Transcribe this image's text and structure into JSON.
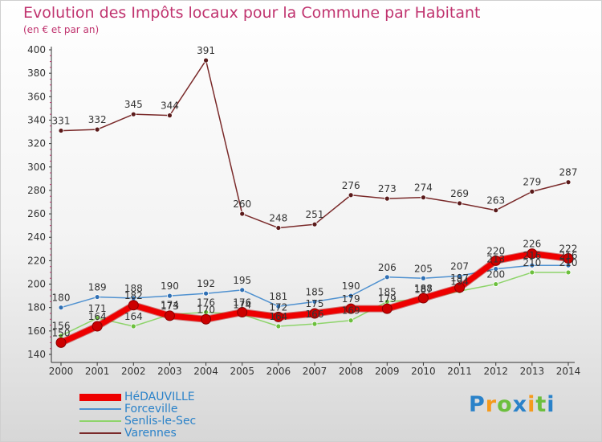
{
  "chart_data": {
    "type": "line",
    "title": "Evolution des Impôts locaux pour la Commune par Habitant",
    "subtitle": "(en € et par an)",
    "x": [
      "2000",
      "2001",
      "2002",
      "2003",
      "2004",
      "2005",
      "2006",
      "2007",
      "2008",
      "2009",
      "2010",
      "2011",
      "2012",
      "2013",
      "2014"
    ],
    "ylim": [
      140,
      400
    ],
    "yticks": [
      140,
      160,
      180,
      200,
      220,
      240,
      260,
      280,
      300,
      320,
      340,
      360,
      380,
      400
    ],
    "grid": false,
    "legend_position": "bottom-left",
    "series": [
      {
        "name": "HéDAUVILLE",
        "color": "#ee0000",
        "values": [
          150,
          164,
          182,
          173,
          170,
          176,
          172,
          175,
          179,
          179,
          188,
          197,
          220,
          226,
          222
        ],
        "labels": [
          150,
          164,
          182,
          173,
          170,
          176,
          172,
          175,
          179,
          179,
          188,
          197,
          220,
          226,
          222
        ]
      },
      {
        "name": "Forceville",
        "color": "#4f91d0",
        "values": [
          180,
          189,
          188,
          190,
          192,
          195,
          181,
          185,
          190,
          206,
          205,
          207,
          213,
          216,
          216
        ],
        "labels": [
          180,
          189,
          188,
          190,
          192,
          195,
          181,
          185,
          190,
          206,
          205,
          207,
          213,
          216,
          216
        ]
      },
      {
        "name": "Senlis-le-Sec",
        "color": "#8ed46b",
        "values": [
          156,
          171,
          164,
          174,
          176,
          174,
          164,
          166,
          169,
          185,
          187,
          194,
          200,
          210,
          210
        ],
        "labels": [
          156,
          171,
          164,
          174,
          176,
          174,
          164,
          166,
          169,
          185,
          187,
          194,
          200,
          210,
          210
        ]
      },
      {
        "name": "Varennes",
        "color": "#7a2a2a",
        "values": [
          331,
          332,
          345,
          344,
          391,
          260,
          248,
          251,
          276,
          273,
          274,
          269,
          263,
          279,
          287
        ],
        "labels": [
          331,
          332,
          345,
          344,
          391,
          260,
          248,
          251,
          276,
          273,
          274,
          269,
          263,
          279,
          287
        ]
      }
    ]
  },
  "logo": {
    "text": "Proxiti",
    "letters": [
      "P",
      "r",
      "o",
      "x",
      "i",
      "t",
      "i"
    ],
    "colors": [
      "#2a82c9",
      "#f59a1c",
      "#6cbf3d",
      "#2a82c9",
      "#f59a1c",
      "#6cbf3d",
      "#2a82c9"
    ]
  }
}
